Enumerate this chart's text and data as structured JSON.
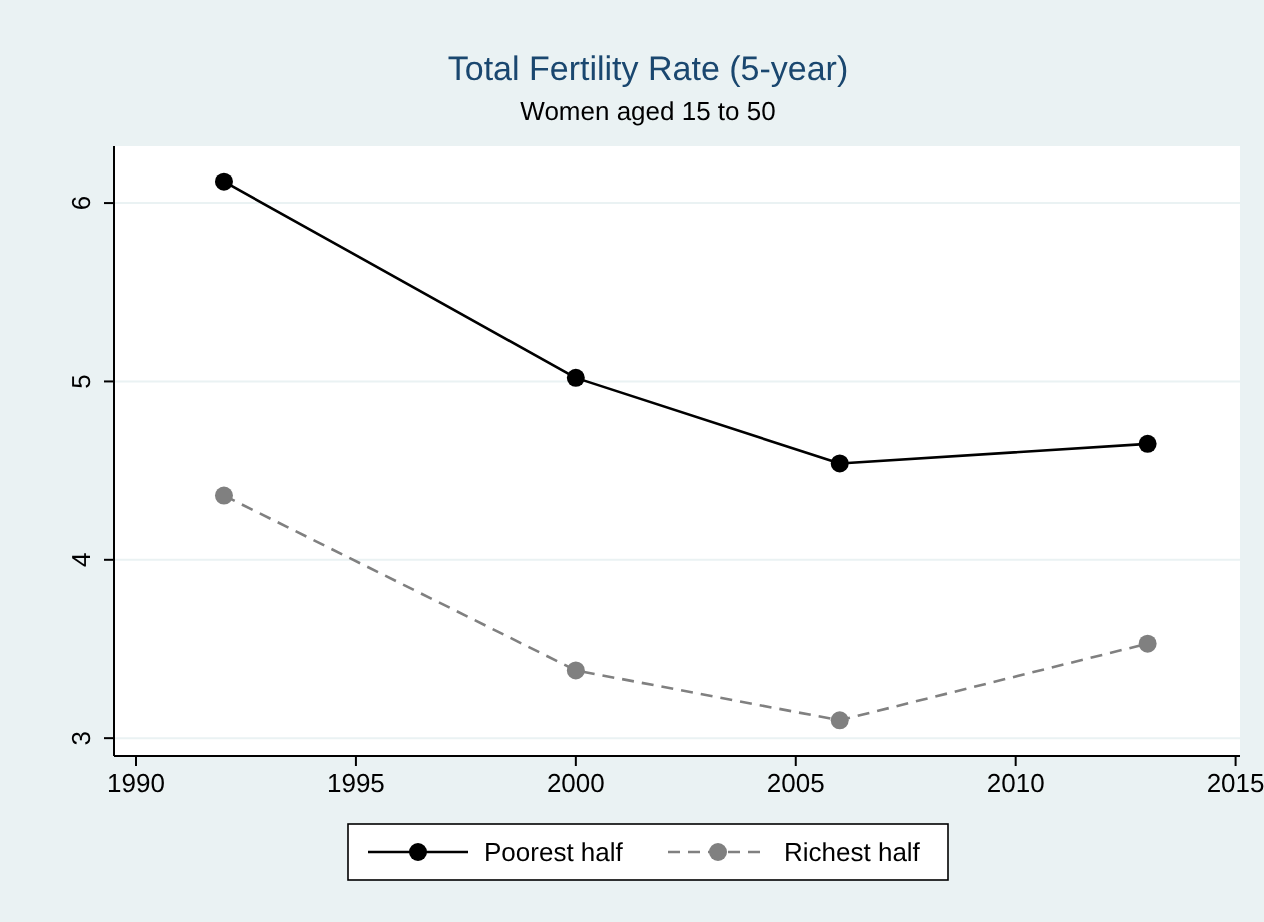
{
  "chart_data": {
    "type": "line",
    "title": "Total Fertility Rate (5-year)",
    "subtitle": "Women aged 15 to 50",
    "x": [
      1992,
      2000,
      2006,
      2013
    ],
    "series": [
      {
        "name": "Poorest half",
        "color": "#000000",
        "values": [
          6.12,
          5.02,
          4.54,
          4.65
        ],
        "line_style": "solid"
      },
      {
        "name": "Richest half",
        "color": "#808080",
        "values": [
          4.36,
          3.38,
          3.1,
          3.53
        ],
        "line_style": "dashed"
      }
    ],
    "xlim": [
      1989.5,
      2015.1
    ],
    "xticks": [
      1990,
      1995,
      2000,
      2005,
      2010,
      2015
    ],
    "ylim": [
      2.9,
      6.32
    ],
    "yticks": [
      3,
      4,
      5,
      6
    ],
    "grid": "y",
    "legend": "bottom",
    "marker": "circle"
  }
}
